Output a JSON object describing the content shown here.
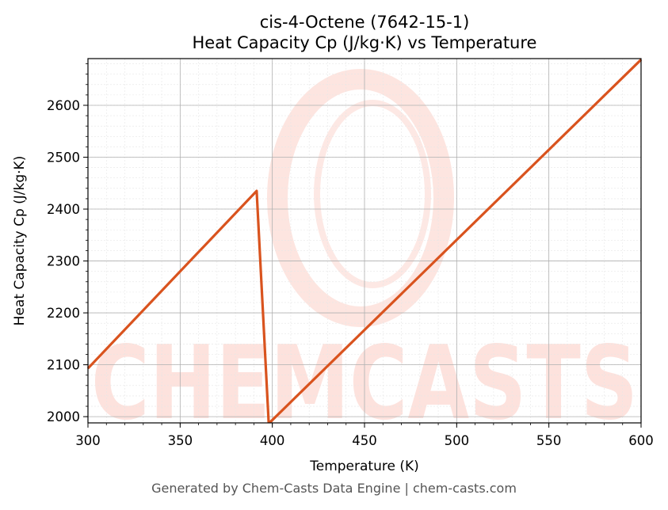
{
  "chart_data": {
    "type": "line",
    "title": "cis-4-Octene (7642-15-1)",
    "subtitle": "Heat Capacity Cp (J/kg·K) vs Temperature",
    "xlabel": "Temperature (K)",
    "ylabel": "Heat Capacity Cp (J/kg·K)",
    "xlim": [
      300,
      600
    ],
    "ylim": [
      1988,
      2690
    ],
    "xticks": [
      300,
      350,
      400,
      450,
      500,
      550,
      600
    ],
    "yticks": [
      2000,
      2100,
      2200,
      2300,
      2400,
      2500,
      2600
    ],
    "grid": true,
    "series": [
      {
        "color": "#d9531e",
        "x": [
          300,
          391.5,
          398,
          399,
          600
        ],
        "y": [
          2093,
          2435,
          1990,
          1990,
          2688
        ]
      }
    ]
  },
  "watermark": {
    "text": "CHEMCASTS",
    "color": "#fde2dd"
  },
  "footer": "Generated by Chem-Casts Data Engine | chem-casts.com"
}
